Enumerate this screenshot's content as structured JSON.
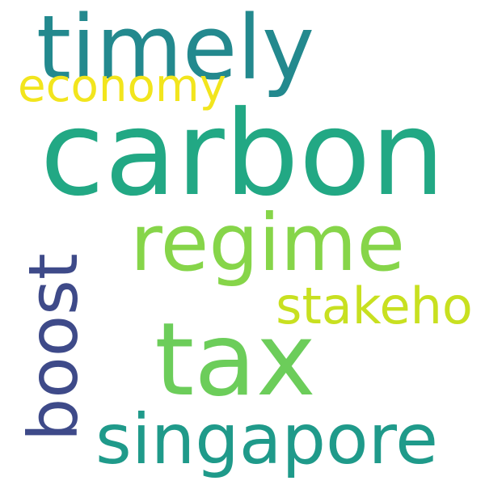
{
  "words": [
    {
      "text": "carbon",
      "color": "#22a884"
    },
    {
      "text": "tax",
      "color": "#6ccd5a"
    },
    {
      "text": "timely",
      "color": "#23898e"
    },
    {
      "text": "regime",
      "color": "#86d549"
    },
    {
      "text": "boost",
      "color": "#3e4a89"
    },
    {
      "text": "singapore",
      "color": "#1f9a8a"
    },
    {
      "text": "economy",
      "color": "#f2e51d"
    },
    {
      "text": "stakeho",
      "color": "#c8e020"
    }
  ]
}
